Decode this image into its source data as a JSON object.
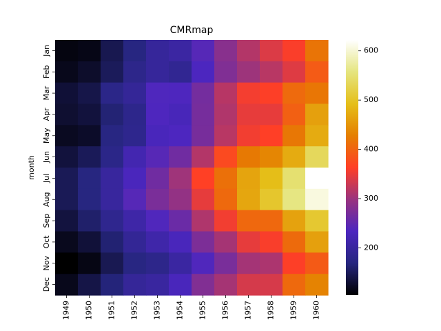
{
  "chart_data": {
    "type": "heatmap",
    "title": "CMRmap",
    "xlabel": "",
    "ylabel": "month",
    "x": [
      "1949",
      "1950",
      "1951",
      "1952",
      "1953",
      "1954",
      "1955",
      "1956",
      "1957",
      "1958",
      "1959",
      "1960"
    ],
    "y": [
      "Jan",
      "Feb",
      "Mar",
      "Apr",
      "May",
      "Jun",
      "Jul",
      "Aug",
      "Sep",
      "Oct",
      "Nov",
      "Dec"
    ],
    "colormap": "CMRmap",
    "vmin": 104,
    "vmax": 622,
    "colorbar_ticks": [
      200,
      300,
      400,
      500,
      600
    ],
    "values": [
      [
        112,
        115,
        145,
        171,
        196,
        204,
        242,
        284,
        315,
        340,
        360,
        417
      ],
      [
        118,
        126,
        150,
        180,
        196,
        188,
        233,
        277,
        301,
        318,
        342,
        391
      ],
      [
        132,
        141,
        178,
        193,
        236,
        235,
        267,
        317,
        356,
        362,
        406,
        419
      ],
      [
        129,
        135,
        163,
        181,
        235,
        227,
        269,
        313,
        348,
        348,
        396,
        461
      ],
      [
        121,
        125,
        172,
        183,
        229,
        234,
        270,
        318,
        355,
        363,
        420,
        472
      ],
      [
        135,
        149,
        178,
        218,
        243,
        264,
        315,
        374,
        422,
        435,
        472,
        535
      ],
      [
        148,
        170,
        199,
        230,
        264,
        302,
        364,
        413,
        465,
        491,
        548,
        622
      ],
      [
        148,
        170,
        199,
        242,
        272,
        293,
        347,
        405,
        467,
        505,
        559,
        606
      ],
      [
        136,
        158,
        184,
        209,
        237,
        259,
        312,
        355,
        404,
        404,
        463,
        508
      ],
      [
        119,
        133,
        162,
        191,
        211,
        229,
        274,
        306,
        347,
        359,
        407,
        461
      ],
      [
        104,
        114,
        146,
        172,
        180,
        203,
        237,
        271,
        305,
        310,
        362,
        390
      ],
      [
        118,
        140,
        166,
        194,
        201,
        229,
        278,
        306,
        336,
        337,
        405,
        432
      ]
    ]
  }
}
